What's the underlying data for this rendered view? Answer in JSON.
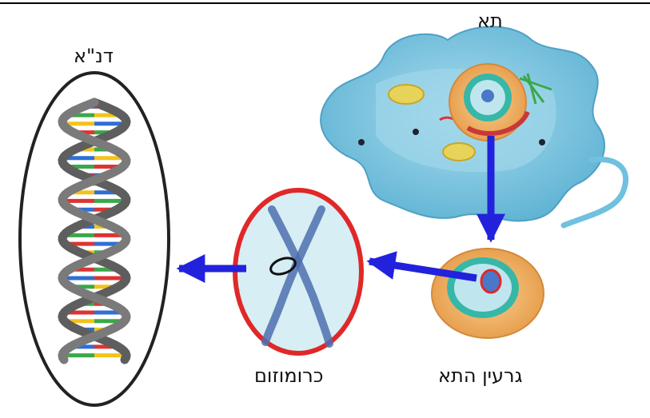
{
  "labels": {
    "dna": "דנ\"א",
    "cell": "תא",
    "chromosome": "כרומוזום",
    "nucleus": "גרעין התא"
  },
  "colors": {
    "arrow": "#2222dd",
    "chromosome_ring": "#e02828",
    "cell_body": "#7cc6e2",
    "nucleus_body": "#f2b56a",
    "dna_strand": "#6b6b6b",
    "base_red": "#d33",
    "base_blue": "#2f6fd6",
    "base_yellow": "#f2c31b",
    "base_green": "#3aa84a"
  }
}
